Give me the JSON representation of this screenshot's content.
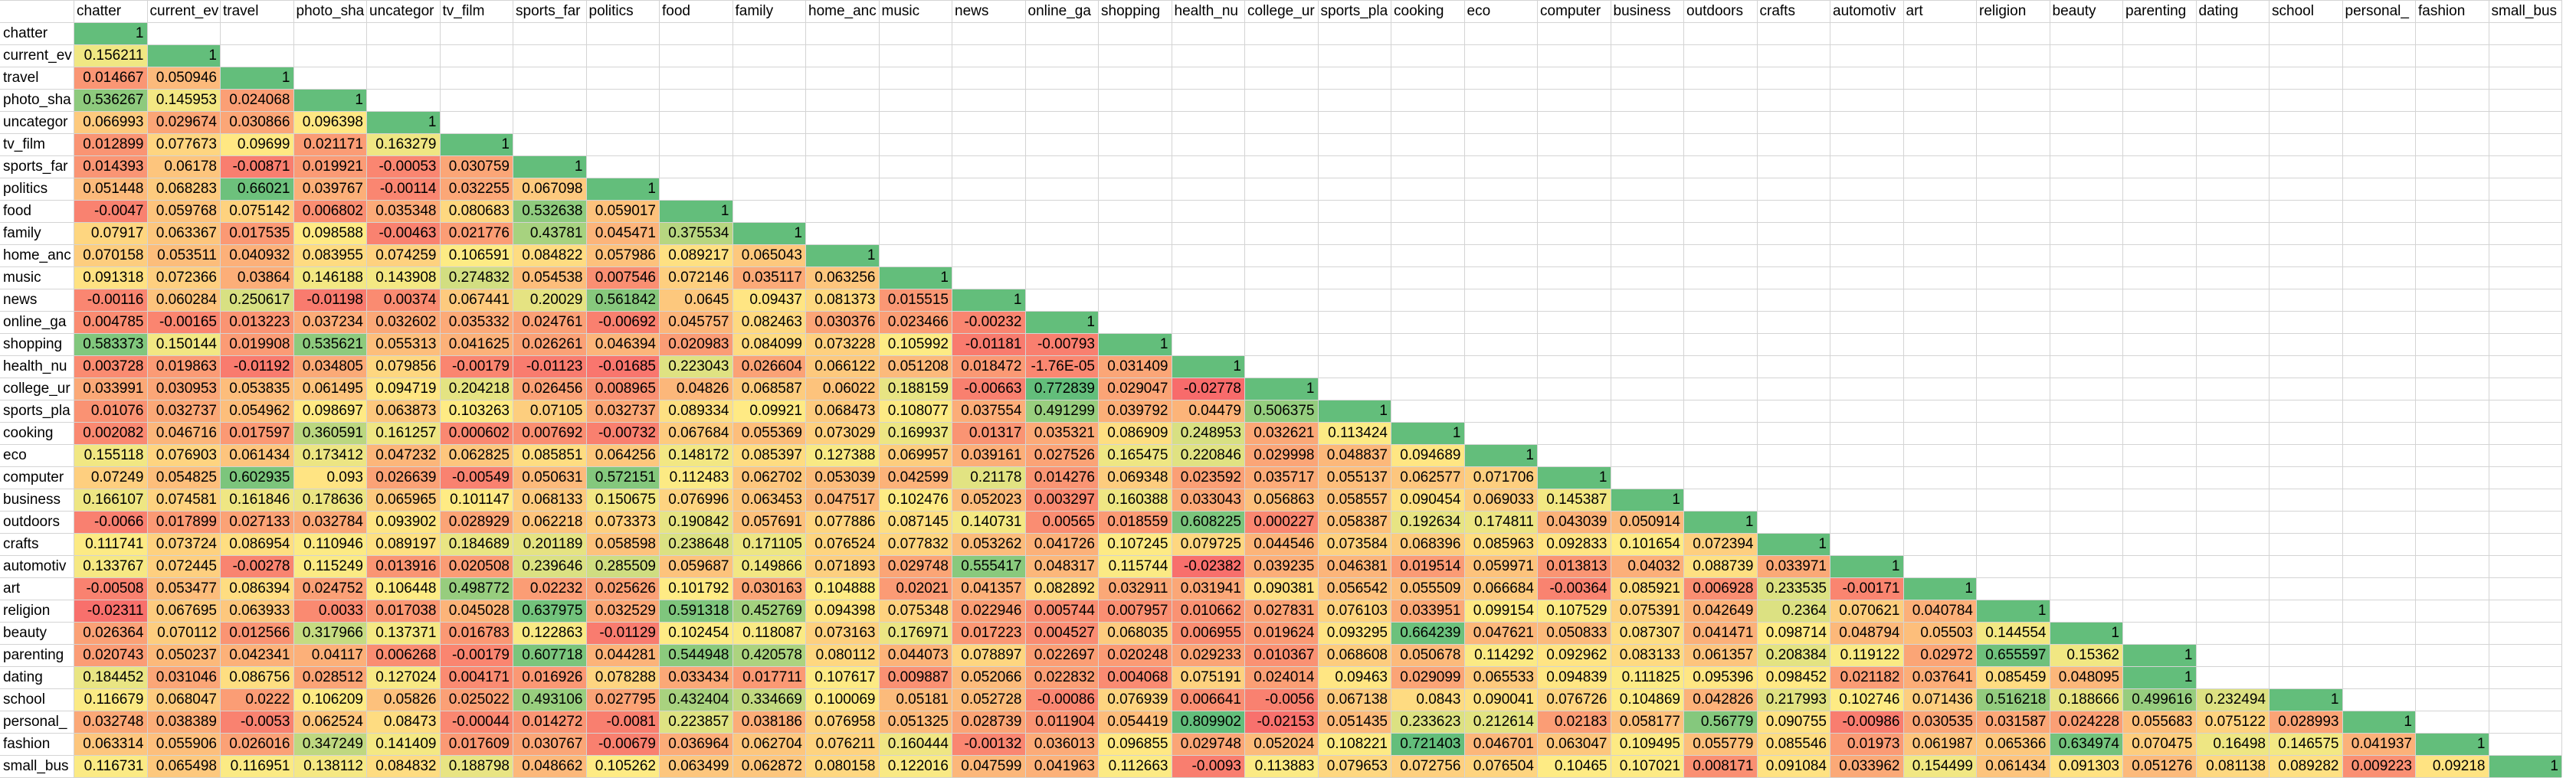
{
  "columns": [
    "chatter",
    "current_ev",
    "travel",
    "photo_sha",
    "uncategor",
    "tv_film",
    "sports_far",
    "politics",
    "food",
    "family",
    "home_anc",
    "music",
    "news",
    "online_ga",
    "shopping",
    "health_nu",
    "college_ur",
    "sports_pla",
    "cooking",
    "eco",
    "computer",
    "business",
    "outdoors",
    "crafts",
    "automotiv",
    "art",
    "religion",
    "beauty",
    "parenting",
    "dating",
    "school",
    "personal_",
    "fashion",
    "small_bus"
  ],
  "rows": [
    {
      "label": "chatter",
      "cells": [
        "1"
      ]
    },
    {
      "label": "current_ev",
      "cells": [
        "0.156211",
        "1"
      ]
    },
    {
      "label": "travel",
      "cells": [
        "0.014667",
        "0.050946",
        "1"
      ]
    },
    {
      "label": "photo_sha",
      "cells": [
        "0.536267",
        "0.145953",
        "0.024068",
        "1"
      ]
    },
    {
      "label": "uncategor",
      "cells": [
        "0.066993",
        "0.029674",
        "0.030866",
        "0.096398",
        "1"
      ]
    },
    {
      "label": "tv_film",
      "cells": [
        "0.012899",
        "0.077673",
        "0.09699",
        "0.021171",
        "0.163279",
        "1"
      ]
    },
    {
      "label": "sports_far",
      "cells": [
        "0.014393",
        "0.06178",
        "-0.00871",
        "0.019921",
        "-0.00053",
        "0.030759",
        "1"
      ]
    },
    {
      "label": "politics",
      "cells": [
        "0.051448",
        "0.068283",
        "0.66021",
        "0.039767",
        "-0.00114",
        "0.032255",
        "0.067098",
        "1"
      ]
    },
    {
      "label": "food",
      "cells": [
        "-0.0047",
        "0.059768",
        "0.075142",
        "0.006802",
        "0.035348",
        "0.080683",
        "0.532638",
        "0.059017",
        "1"
      ]
    },
    {
      "label": "family",
      "cells": [
        "0.07917",
        "0.063367",
        "0.017535",
        "0.098588",
        "-0.00463",
        "0.021776",
        "0.43781",
        "0.045471",
        "0.375534",
        "1"
      ]
    },
    {
      "label": "home_anc",
      "cells": [
        "0.070158",
        "0.053511",
        "0.040932",
        "0.083955",
        "0.074259",
        "0.106591",
        "0.084822",
        "0.057986",
        "0.089217",
        "0.065043",
        "1"
      ]
    },
    {
      "label": "music",
      "cells": [
        "0.091318",
        "0.072366",
        "0.03864",
        "0.146188",
        "0.143908",
        "0.274832",
        "0.054538",
        "0.007546",
        "0.072146",
        "0.035117",
        "0.063256",
        "1"
      ]
    },
    {
      "label": "news",
      "cells": [
        "-0.00116",
        "0.060284",
        "0.250617",
        "-0.01198",
        "0.00374",
        "0.067441",
        "0.20029",
        "0.561842",
        "0.0645",
        "0.09437",
        "0.081373",
        "0.015515",
        "1"
      ]
    },
    {
      "label": "online_ga",
      "cells": [
        "0.004785",
        "-0.00165",
        "0.013223",
        "0.037234",
        "0.032602",
        "0.035332",
        "0.024761",
        "-0.00692",
        "0.045757",
        "0.082463",
        "0.030376",
        "0.023466",
        "-0.00232",
        "1"
      ]
    },
    {
      "label": "shopping",
      "cells": [
        "0.583373",
        "0.150144",
        "0.019908",
        "0.535621",
        "0.055313",
        "0.041625",
        "0.026261",
        "0.046394",
        "0.020983",
        "0.084099",
        "0.073228",
        "0.105992",
        "-0.01181",
        "-0.00793",
        "1"
      ]
    },
    {
      "label": "health_nu",
      "cells": [
        "0.003728",
        "0.019863",
        "-0.01192",
        "0.034805",
        "0.079856",
        "-0.00179",
        "-0.01123",
        "-0.01685",
        "0.223043",
        "0.026604",
        "0.066122",
        "0.051208",
        "0.018472",
        "-1.76E-05",
        "0.031409",
        "1"
      ]
    },
    {
      "label": "college_ur",
      "cells": [
        "0.033991",
        "0.030953",
        "0.053835",
        "0.061495",
        "0.094719",
        "0.204218",
        "0.026456",
        "0.008965",
        "0.04826",
        "0.068587",
        "0.06022",
        "0.188159",
        "-0.00663",
        "0.772839",
        "0.029047",
        "-0.02778",
        "1"
      ]
    },
    {
      "label": "sports_pla",
      "cells": [
        "0.01076",
        "0.032737",
        "0.054962",
        "0.098697",
        "0.063873",
        "0.103263",
        "0.07105",
        "0.032737",
        "0.089334",
        "0.09921",
        "0.068473",
        "0.108077",
        "0.037554",
        "0.491299",
        "0.039792",
        "0.04479",
        "0.506375",
        "1"
      ]
    },
    {
      "label": "cooking",
      "cells": [
        "0.002082",
        "0.046716",
        "0.017597",
        "0.360591",
        "0.161257",
        "0.000602",
        "0.007692",
        "-0.00732",
        "0.067684",
        "0.055369",
        "0.073029",
        "0.169937",
        "0.01317",
        "0.035321",
        "0.086909",
        "0.248953",
        "0.032621",
        "0.113424",
        "1"
      ]
    },
    {
      "label": "eco",
      "cells": [
        "0.155118",
        "0.076903",
        "0.061434",
        "0.173412",
        "0.047232",
        "0.062825",
        "0.085851",
        "0.064256",
        "0.148172",
        "0.085397",
        "0.127388",
        "0.069957",
        "0.039161",
        "0.027526",
        "0.165475",
        "0.220846",
        "0.029998",
        "0.048837",
        "0.094689",
        "1"
      ]
    },
    {
      "label": "computer",
      "cells": [
        "0.07249",
        "0.054825",
        "0.602935",
        "0.093",
        "0.026639",
        "-0.00549",
        "0.050631",
        "0.572151",
        "0.112483",
        "0.062702",
        "0.053039",
        "0.042599",
        "0.21178",
        "0.014276",
        "0.069348",
        "0.023592",
        "0.035717",
        "0.055137",
        "0.062577",
        "0.071706",
        "1"
      ]
    },
    {
      "label": "business",
      "cells": [
        "0.166107",
        "0.074581",
        "0.161846",
        "0.178636",
        "0.065965",
        "0.101147",
        "0.068133",
        "0.150675",
        "0.076996",
        "0.063453",
        "0.047517",
        "0.102476",
        "0.052023",
        "0.003297",
        "0.160388",
        "0.033043",
        "0.056863",
        "0.058557",
        "0.090454",
        "0.069033",
        "0.145387",
        "1"
      ]
    },
    {
      "label": "outdoors",
      "cells": [
        "-0.0066",
        "0.017899",
        "0.027133",
        "0.032784",
        "0.093902",
        "0.028929",
        "0.062218",
        "0.073373",
        "0.190842",
        "0.057691",
        "0.077886",
        "0.087145",
        "0.140731",
        "0.00565",
        "0.018559",
        "0.608225",
        "0.000227",
        "0.058387",
        "0.192634",
        "0.174811",
        "0.043039",
        "0.050914",
        "1"
      ]
    },
    {
      "label": "crafts",
      "cells": [
        "0.111741",
        "0.073724",
        "0.086954",
        "0.110946",
        "0.089197",
        "0.184689",
        "0.201189",
        "0.058598",
        "0.238648",
        "0.171105",
        "0.076524",
        "0.077832",
        "0.053262",
        "0.041726",
        "0.107245",
        "0.079725",
        "0.044546",
        "0.073584",
        "0.068396",
        "0.085963",
        "0.092833",
        "0.101654",
        "0.072394",
        "1"
      ]
    },
    {
      "label": "automotiv",
      "cells": [
        "0.133767",
        "0.072445",
        "-0.00278",
        "0.115249",
        "0.013916",
        "0.020508",
        "0.239646",
        "0.285509",
        "0.059687",
        "0.149866",
        "0.071893",
        "0.029748",
        "0.555417",
        "0.048317",
        "0.115744",
        "-0.02382",
        "0.039235",
        "0.046381",
        "0.019514",
        "0.059971",
        "0.013813",
        "0.04032",
        "0.088739",
        "0.033971",
        "1"
      ]
    },
    {
      "label": "art",
      "cells": [
        "-0.00508",
        "0.053477",
        "0.086394",
        "0.024752",
        "0.106448",
        "0.498772",
        "0.02232",
        "0.025626",
        "0.101792",
        "0.030163",
        "0.104888",
        "0.02021",
        "0.041357",
        "0.082892",
        "0.032911",
        "0.031941",
        "0.090381",
        "0.056542",
        "0.055509",
        "0.066684",
        "-0.00364",
        "0.085921",
        "0.006928",
        "0.233535",
        "-0.00171",
        "1"
      ]
    },
    {
      "label": "religion",
      "cells": [
        "-0.02311",
        "0.067695",
        "0.063933",
        "0.0033",
        "0.017038",
        "0.045028",
        "0.637975",
        "0.032529",
        "0.591318",
        "0.452769",
        "0.094398",
        "0.075348",
        "0.022946",
        "0.005744",
        "0.007957",
        "0.010662",
        "0.027831",
        "0.076103",
        "0.033951",
        "0.099154",
        "0.107529",
        "0.075391",
        "0.042649",
        "0.2364",
        "0.070621",
        "0.040784",
        "1"
      ]
    },
    {
      "label": "beauty",
      "cells": [
        "0.026364",
        "0.070112",
        "0.012566",
        "0.317966",
        "0.137371",
        "0.016783",
        "0.122863",
        "-0.01129",
        "0.102454",
        "0.118087",
        "0.073163",
        "0.176971",
        "0.017223",
        "0.004527",
        "0.068035",
        "0.006955",
        "0.019624",
        "0.093295",
        "0.664239",
        "0.047621",
        "0.050833",
        "0.087307",
        "0.041471",
        "0.098714",
        "0.048794",
        "0.05503",
        "0.144554",
        "1"
      ]
    },
    {
      "label": "parenting",
      "cells": [
        "0.020743",
        "0.050237",
        "0.042341",
        "0.04117",
        "0.006268",
        "-0.00179",
        "0.607718",
        "0.044281",
        "0.544948",
        "0.420578",
        "0.080112",
        "0.044073",
        "0.078897",
        "0.022697",
        "0.020248",
        "0.029233",
        "0.010367",
        "0.068608",
        "0.050678",
        "0.114292",
        "0.092962",
        "0.083133",
        "0.061357",
        "0.208384",
        "0.119122",
        "0.02972",
        "0.655597",
        "0.15362",
        "1"
      ]
    },
    {
      "label": "dating",
      "cells": [
        "0.184452",
        "0.031046",
        "0.086756",
        "0.028512",
        "0.127024",
        "0.004171",
        "0.016926",
        "0.078288",
        "0.033434",
        "0.017711",
        "0.107617",
        "0.009887",
        "0.052066",
        "0.022832",
        "0.004068",
        "0.075191",
        "0.024014",
        "0.09463",
        "0.029099",
        "0.065533",
        "0.094839",
        "0.111825",
        "0.095396",
        "0.098452",
        "0.021182",
        "0.037641",
        "0.085459",
        "0.048095",
        "1"
      ]
    },
    {
      "label": "school",
      "cells": [
        "0.116679",
        "0.068047",
        "0.0222",
        "0.106209",
        "0.05826",
        "0.025022",
        "0.493106",
        "0.027795",
        "0.432404",
        "0.334669",
        "0.100069",
        "0.05181",
        "0.052728",
        "-0.00086",
        "0.076939",
        "0.006641",
        "-0.0056",
        "0.067138",
        "0.0843",
        "0.090041",
        "0.076726",
        "0.104869",
        "0.042826",
        "0.217993",
        "0.102746",
        "0.071436",
        "0.516218",
        "0.188666",
        "0.499616",
        "0.232494",
        "1"
      ]
    },
    {
      "label": "personal_",
      "cells": [
        "0.032748",
        "0.038389",
        "-0.0053",
        "0.062524",
        "0.08473",
        "-0.00044",
        "0.014272",
        "-0.0081",
        "0.223857",
        "0.038186",
        "0.076958",
        "0.051325",
        "0.028739",
        "0.011904",
        "0.054419",
        "0.809902",
        "-0.02153",
        "0.051435",
        "0.233623",
        "0.212614",
        "0.02183",
        "0.058177",
        "0.56779",
        "0.090755",
        "-0.00986",
        "0.030535",
        "0.031587",
        "0.024228",
        "0.055683",
        "0.075122",
        "0.028993",
        "1"
      ]
    },
    {
      "label": "fashion",
      "cells": [
        "0.063314",
        "0.055906",
        "0.026016",
        "0.347249",
        "0.141409",
        "0.017609",
        "0.030767",
        "-0.00679",
        "0.036964",
        "0.062704",
        "0.076211",
        "0.160444",
        "-0.00132",
        "0.036013",
        "0.096855",
        "0.029748",
        "0.052024",
        "0.108221",
        "0.721403",
        "0.046701",
        "0.063047",
        "0.109495",
        "0.055779",
        "0.085546",
        "0.01973",
        "0.061987",
        "0.065366",
        "0.634974",
        "0.070475",
        "0.16498",
        "0.146575",
        "0.041937",
        "1"
      ]
    },
    {
      "label": "small_bus",
      "cells": [
        "0.116731",
        "0.065498",
        "0.116951",
        "0.138112",
        "0.084832",
        "0.188798",
        "0.048662",
        "0.105262",
        "0.063499",
        "0.062872",
        "0.080158",
        "0.122016",
        "0.047599",
        "0.041963",
        "0.112663",
        "-0.0093",
        "0.113883",
        "0.079653",
        "0.072756",
        "0.076504",
        "0.10465",
        "0.107021",
        "0.008171",
        "0.091084",
        "0.033962",
        "0.154499",
        "0.061434",
        "0.091303",
        "0.051276",
        "0.081138",
        "0.089282",
        "0.009223",
        "0.09218",
        "1"
      ]
    }
  ]
}
